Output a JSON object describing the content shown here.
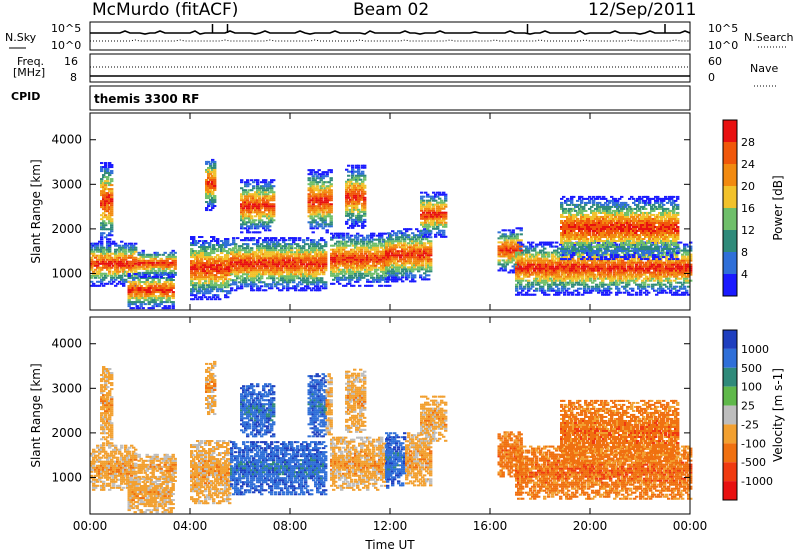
{
  "header": {
    "station": "McMurdo (fitACF)",
    "beam": "Beam 02",
    "date": "12/Sep/2011"
  },
  "summary_panels": {
    "nsky_label": "N.Sky",
    "nsky_ticks": [
      "10^5",
      "10^0"
    ],
    "nsearch_label": "N.Search",
    "nsearch_ticks": [
      "10^5",
      "10^0"
    ],
    "freq_label": "Freq.",
    "freq_unit": "[MHz]",
    "freq_ticks": [
      "16",
      "8"
    ],
    "nave_label": "Nave",
    "nave_ticks": [
      "60",
      "0"
    ],
    "cpid_label": "CPID",
    "cpid_value": "themis 3300 RF"
  },
  "chart_data": [
    {
      "type": "heatmap",
      "name": "power",
      "xlabel": "",
      "ylabel": "Slant Range [km]",
      "x_ticks": [
        "00:00",
        "04:00",
        "08:00",
        "12:00",
        "16:00",
        "20:00",
        "00:00"
      ],
      "xlim_hours": [
        0,
        24
      ],
      "ylim": [
        180,
        4600
      ],
      "y_ticks": [
        1000,
        2000,
        3000,
        4000
      ],
      "colorbar": {
        "label": "Power [dB]",
        "ticks": [
          "4",
          "8",
          "12",
          "16",
          "20",
          "24",
          "28"
        ],
        "colors": [
          "#1a1aff",
          "#2f6fd8",
          "#2f8a7a",
          "#6fbf6a",
          "#f2c22b",
          "#f28a10",
          "#f0570a",
          "#e81010"
        ]
      }
    },
    {
      "type": "heatmap",
      "name": "velocity",
      "xlabel": "Time UT",
      "ylabel": "Slant Range [km]",
      "x_ticks": [
        "00:00",
        "04:00",
        "08:00",
        "12:00",
        "16:00",
        "20:00",
        "00:00"
      ],
      "xlim_hours": [
        0,
        24
      ],
      "ylim": [
        180,
        4600
      ],
      "y_ticks": [
        1000,
        2000,
        3000,
        4000
      ],
      "colorbar": {
        "label": "Velocity [m s-1]",
        "ticks": [
          "1000",
          "500",
          "100",
          "25",
          "-25",
          "-100",
          "-500",
          "-1000"
        ],
        "colors": [
          "#1f3fbf",
          "#2f6fd8",
          "#2f8a7a",
          "#5fb84a",
          "#bdbdbd",
          "#f2a030",
          "#f07010",
          "#f03a10",
          "#e81010"
        ]
      }
    }
  ]
}
